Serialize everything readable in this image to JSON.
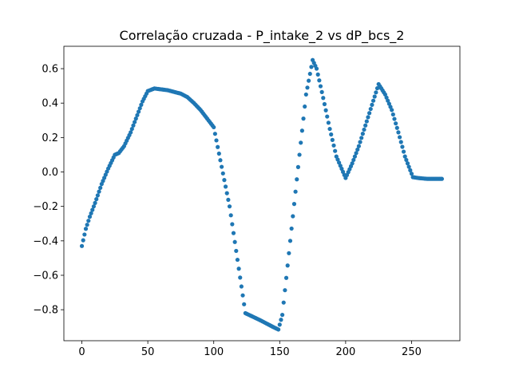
{
  "chart_data": {
    "type": "scatter",
    "title": "Correlação cruzada - P_intake_2 vs dP_bcs_2",
    "xlabel": "",
    "ylabel": "",
    "xlim": [
      -13.65,
      286.65
    ],
    "ylim": [
      -0.98,
      0.73
    ],
    "x_ticks": [
      0,
      50,
      100,
      150,
      200,
      250
    ],
    "y_ticks": [
      -0.8,
      -0.6,
      -0.4,
      -0.2,
      0.0,
      0.2,
      0.4,
      0.6
    ],
    "y_tick_labels": [
      "−0.8",
      "−0.6",
      "−0.4",
      "−0.2",
      "0.0",
      "0.2",
      "0.4",
      "0.6"
    ],
    "grid": false,
    "marker_color": "#1f77b4",
    "series": [
      {
        "name": "",
        "knots_x": [
          0,
          3,
          6,
          10,
          15,
          20,
          25,
          28,
          32,
          37,
          42,
          46,
          50,
          55,
          65,
          75,
          80,
          85,
          90,
          95,
          100,
          112,
          124,
          135,
          140,
          145,
          149,
          152,
          158,
          165,
          170,
          175,
          178,
          183,
          188,
          193,
          200,
          205,
          210,
          215,
          220,
          225,
          230,
          235,
          240,
          245,
          251,
          255,
          262,
          273
        ],
        "knots_y": [
          -0.43,
          -0.33,
          -0.26,
          -0.18,
          -0.07,
          0.02,
          0.1,
          0.11,
          0.15,
          0.23,
          0.33,
          0.41,
          0.47,
          0.485,
          0.475,
          0.455,
          0.435,
          0.4,
          0.36,
          0.31,
          0.26,
          -0.2,
          -0.82,
          -0.86,
          -0.88,
          -0.9,
          -0.915,
          -0.83,
          -0.4,
          0.1,
          0.45,
          0.65,
          0.6,
          0.43,
          0.25,
          0.09,
          -0.035,
          0.05,
          0.15,
          0.27,
          0.39,
          0.51,
          0.45,
          0.36,
          0.23,
          0.09,
          -0.03,
          -0.035,
          -0.04,
          -0.04
        ]
      }
    ]
  }
}
